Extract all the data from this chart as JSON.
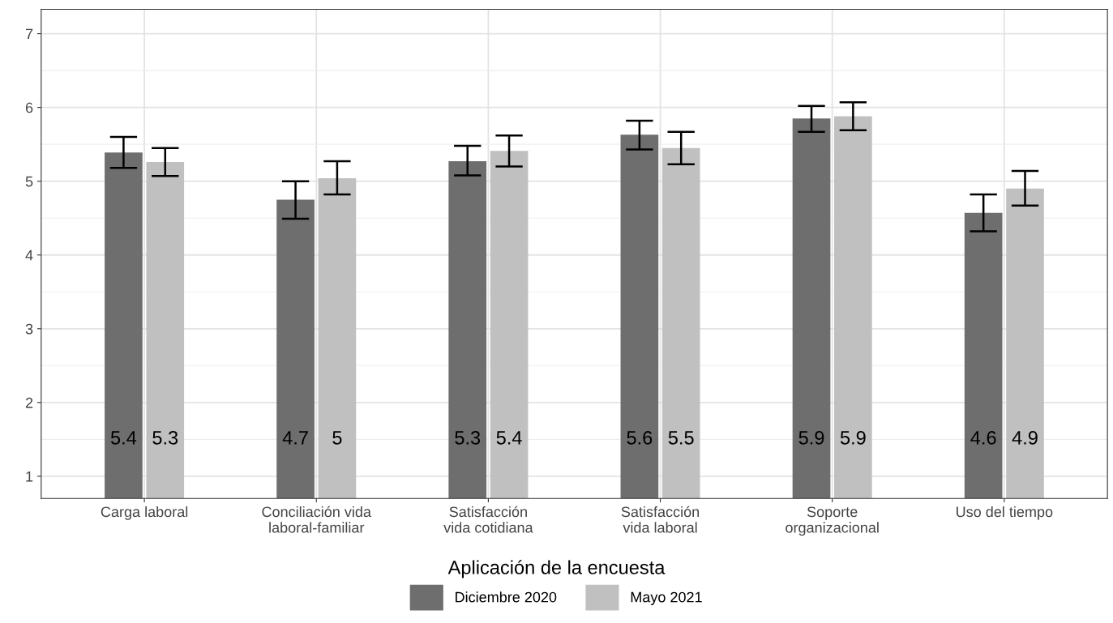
{
  "chart_data": {
    "type": "bar",
    "categories": [
      "Carga laboral",
      "Conciliación vida\nlaboral-familiar",
      "Satisfacción\nvida cotidiana",
      "Satisfacción\nvida laboral",
      "Soporte\norganizacional",
      "Uso del tiempo"
    ],
    "series": [
      {
        "name": "Diciembre 2020",
        "color": "#6e6e6e",
        "values": [
          5.39,
          4.75,
          5.27,
          5.63,
          5.85,
          4.57
        ],
        "errors": [
          [
            5.18,
            5.6
          ],
          [
            4.49,
            5.0
          ],
          [
            5.08,
            5.48
          ],
          [
            5.43,
            5.82
          ],
          [
            5.67,
            6.02
          ],
          [
            4.32,
            4.82
          ]
        ],
        "value_labels": [
          "5.4",
          "4.7",
          "5.3",
          "5.6",
          "5.9",
          "4.6"
        ]
      },
      {
        "name": "Mayo 2021",
        "color": "#c0c0c0",
        "values": [
          5.26,
          5.04,
          5.41,
          5.45,
          5.88,
          4.9
        ],
        "errors": [
          [
            5.07,
            5.45
          ],
          [
            4.82,
            5.27
          ],
          [
            5.2,
            5.62
          ],
          [
            5.23,
            5.67
          ],
          [
            5.69,
            6.07
          ],
          [
            4.67,
            5.14
          ]
        ],
        "value_labels": [
          "5.3",
          "5",
          "5.4",
          "5.5",
          "5.9",
          "4.9"
        ]
      }
    ],
    "legend_title": "Aplicación de la encuesta",
    "legend": "bottom",
    "ylim": [
      0.7,
      7.33
    ],
    "yticks": [
      1,
      2,
      3,
      4,
      5,
      6,
      7
    ],
    "grid": true
  }
}
